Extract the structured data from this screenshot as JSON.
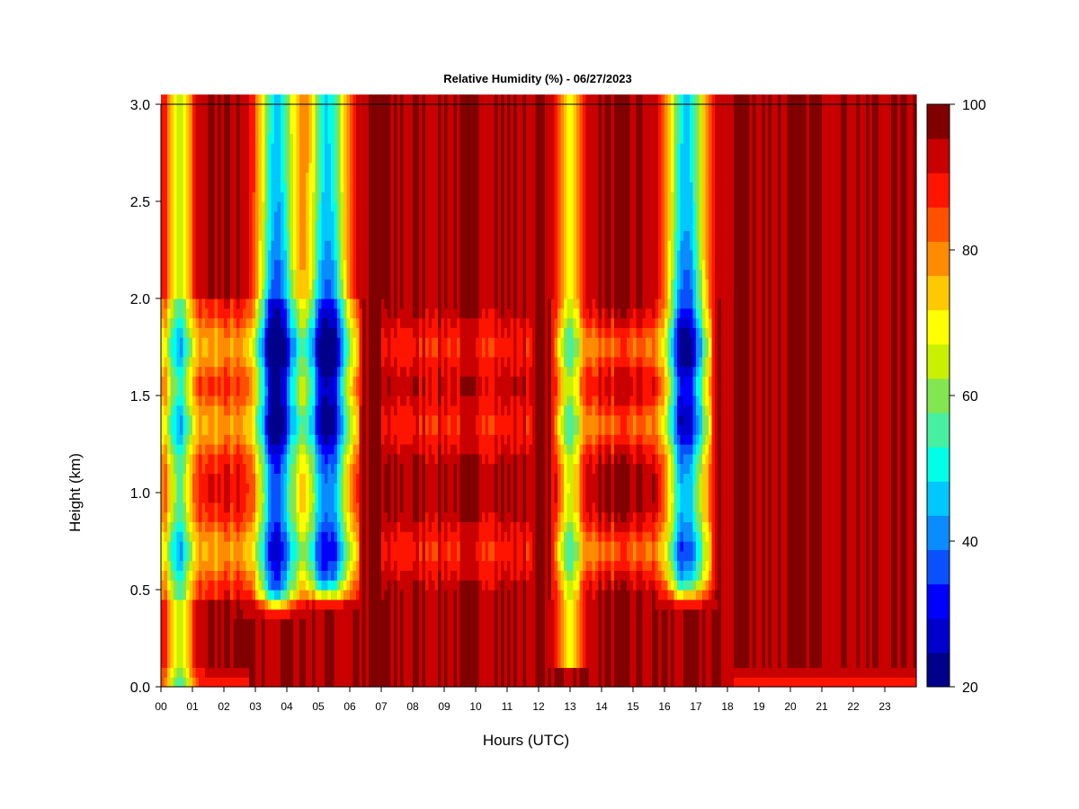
{
  "chart_data": {
    "type": "heatmap",
    "title": "Relative Humidity (%) - 06/27/2023",
    "xlabel": "Hours (UTC)",
    "ylabel": "Height (km)",
    "xlim": [
      0,
      24
    ],
    "ylim": [
      0,
      3
    ],
    "x_ticks": [
      "00",
      "01",
      "02",
      "03",
      "04",
      "05",
      "06",
      "07",
      "08",
      "09",
      "10",
      "11",
      "12",
      "13",
      "14",
      "15",
      "16",
      "17",
      "18",
      "19",
      "20",
      "21",
      "22",
      "23"
    ],
    "y_ticks": [
      "0.0",
      "0.5",
      "1.0",
      "1.5",
      "2.0",
      "2.5",
      "3.0"
    ],
    "colorbar": {
      "min": 20,
      "max": 100,
      "step": 5,
      "tick_labels": [
        "20",
        "40",
        "60",
        "80",
        "100"
      ],
      "colors": [
        "#00008B",
        "#0000CD",
        "#0000FF",
        "#0A50FF",
        "#0A8CFF",
        "#00C8FF",
        "#00FFE6",
        "#46F0A0",
        "#82E650",
        "#C8F000",
        "#FFFF00",
        "#FFC800",
        "#FF8C00",
        "#FF5000",
        "#FF1400",
        "#C80000",
        "#800000"
      ]
    },
    "dry_bands": [
      {
        "center_hour": 3.7,
        "from_km": 0.35,
        "to_km": 3.0,
        "min_rh": 30
      },
      {
        "center_hour": 5.3,
        "from_km": 0.4,
        "to_km": 3.0,
        "min_rh": 32
      },
      {
        "center_hour": 16.7,
        "from_km": 0.4,
        "to_km": 3.0,
        "min_rh": 30
      },
      {
        "center_hour": 13.0,
        "from_km": 0.1,
        "to_km": 3.0,
        "min_rh": 72
      },
      {
        "center_hour": 0.6,
        "from_km": 0.0,
        "to_km": 3.0,
        "min_rh": 65
      }
    ],
    "moist_layers_km": [
      0.7,
      1.35,
      1.75
    ]
  }
}
